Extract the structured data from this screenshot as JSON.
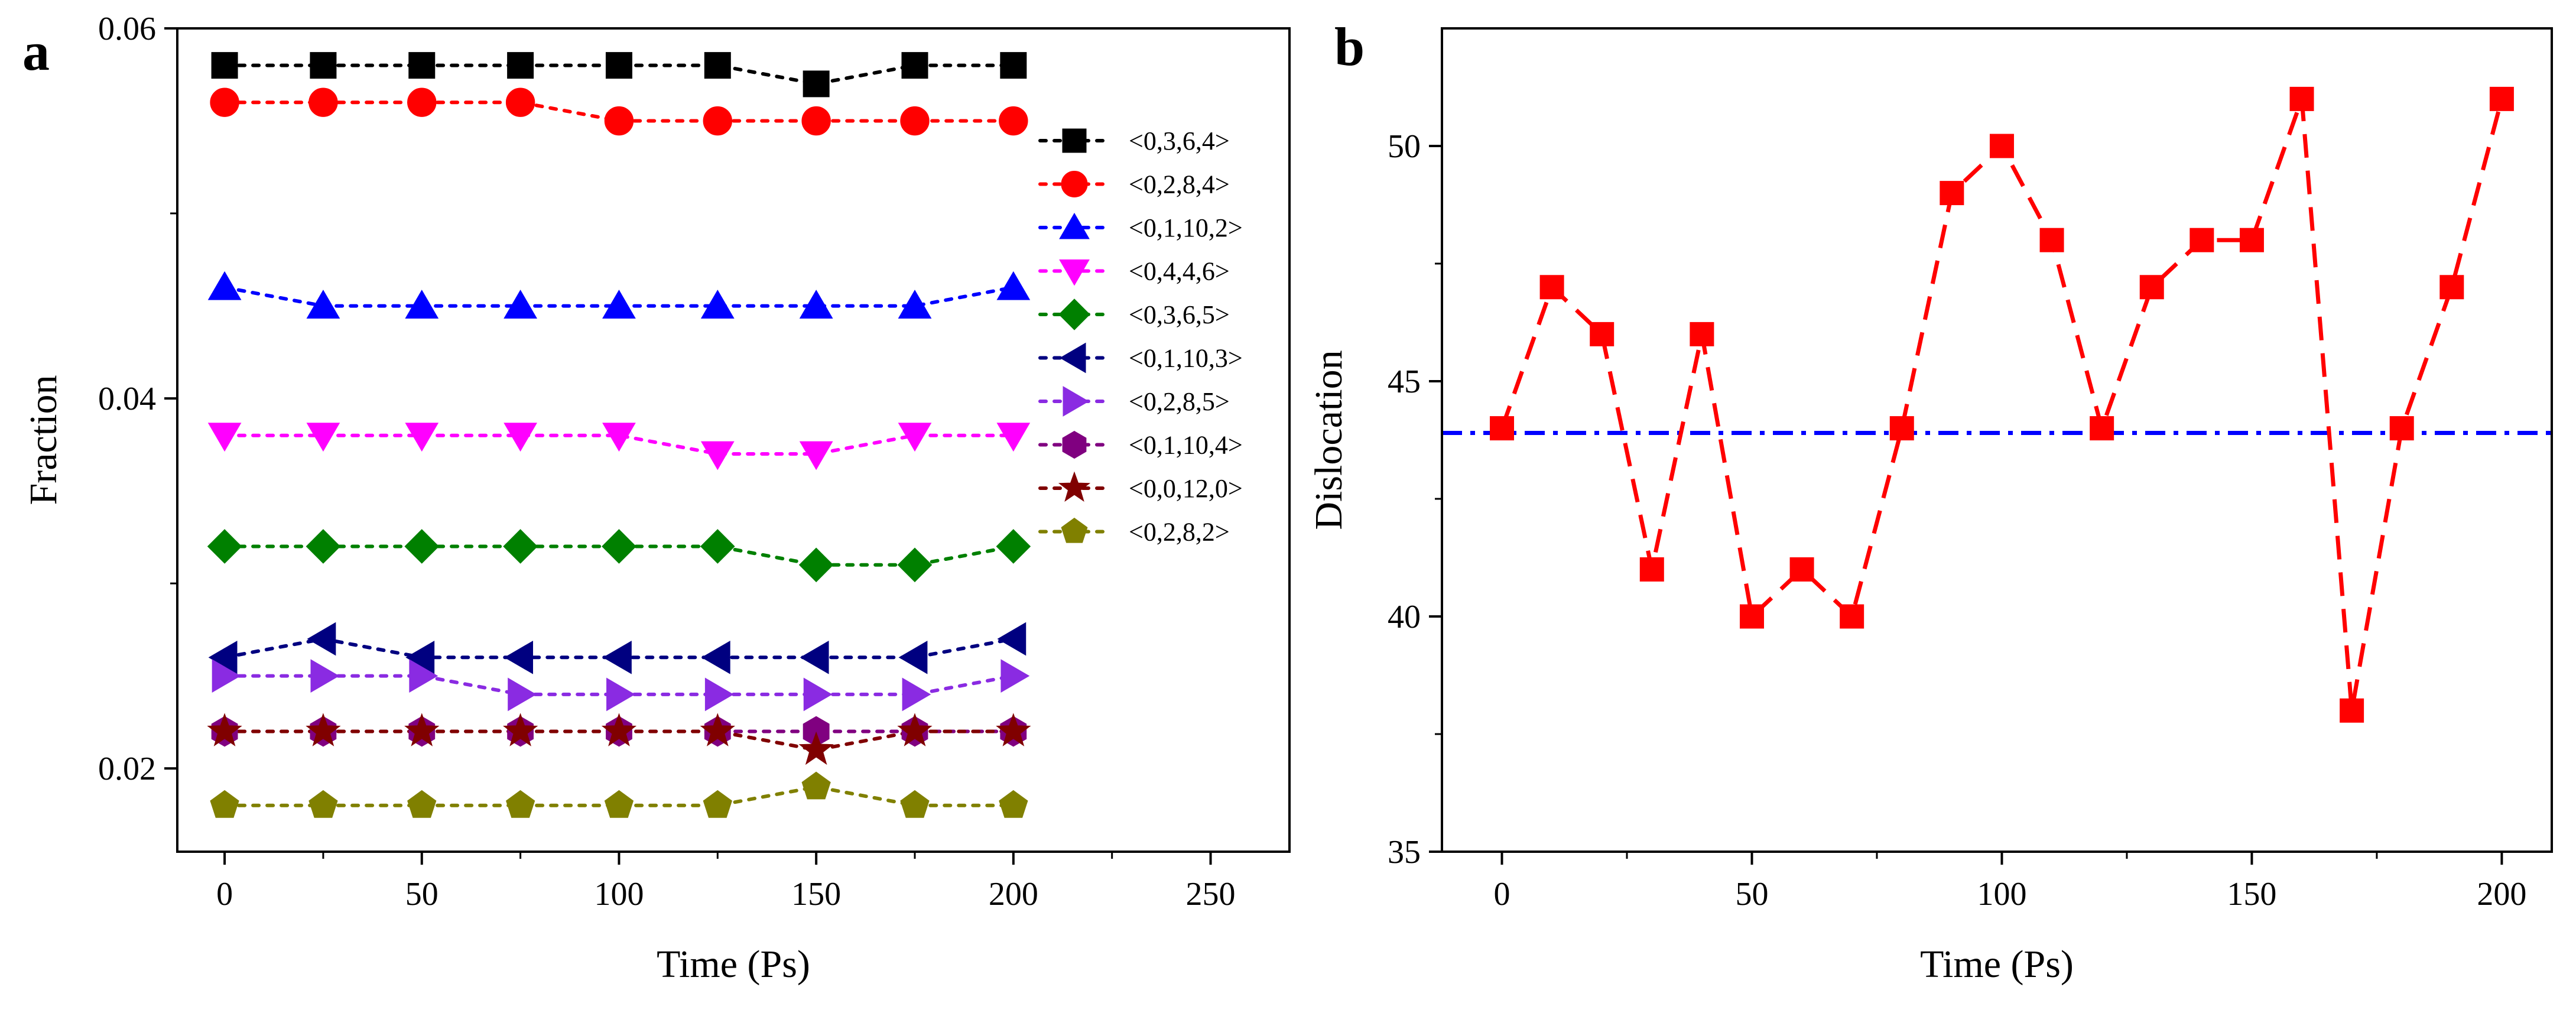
{
  "chart_data": [
    {
      "panel": "a",
      "type": "line",
      "title": "",
      "xlabel": "Time (Ps)",
      "ylabel": "Fraction",
      "xlim": [
        -12,
        270
      ],
      "ylim": [
        0.0155,
        0.06
      ],
      "xticks": [
        0,
        50,
        100,
        150,
        200,
        250
      ],
      "yticks": [
        0.02,
        0.04,
        0.06
      ],
      "xtick_labels": [
        "0",
        "50",
        "100",
        "150",
        "200",
        "250"
      ],
      "ytick_labels": [
        "0.02",
        "0.04",
        "0.06"
      ],
      "legend_position": "right",
      "x": [
        0,
        25,
        50,
        75,
        100,
        125,
        150,
        175,
        200
      ],
      "series": [
        {
          "name": "<0,3,6,4>",
          "color": "#000000",
          "marker": "square",
          "values": [
            0.058,
            0.058,
            0.058,
            0.058,
            0.058,
            0.058,
            0.057,
            0.058,
            0.058
          ]
        },
        {
          "name": "<0,2,8,4>",
          "color": "#ff0000",
          "marker": "circle",
          "values": [
            0.056,
            0.056,
            0.056,
            0.056,
            0.055,
            0.055,
            0.055,
            0.055,
            0.055
          ]
        },
        {
          "name": "<0,1,10,2>",
          "color": "#0000ff",
          "marker": "triangle-up",
          "values": [
            0.046,
            0.045,
            0.045,
            0.045,
            0.045,
            0.045,
            0.045,
            0.045,
            0.046
          ]
        },
        {
          "name": "<0,4,4,6>",
          "color": "#ff00ff",
          "marker": "triangle-down",
          "values": [
            0.038,
            0.038,
            0.038,
            0.038,
            0.038,
            0.037,
            0.037,
            0.038,
            0.038
          ]
        },
        {
          "name": "<0,3,6,5>",
          "color": "#008000",
          "marker": "diamond",
          "values": [
            0.032,
            0.032,
            0.032,
            0.032,
            0.032,
            0.032,
            0.031,
            0.031,
            0.032
          ]
        },
        {
          "name": "<0,1,10,3>",
          "color": "#000080",
          "marker": "triangle-left",
          "values": [
            0.026,
            0.027,
            0.026,
            0.026,
            0.026,
            0.026,
            0.026,
            0.026,
            0.027
          ]
        },
        {
          "name": "<0,2,8,5>",
          "color": "#8a2be2",
          "marker": "triangle-right",
          "values": [
            0.025,
            0.025,
            0.025,
            0.024,
            0.024,
            0.024,
            0.024,
            0.024,
            0.025
          ]
        },
        {
          "name": "<0,1,10,4>",
          "color": "#800080",
          "marker": "hexagon",
          "values": [
            0.022,
            0.022,
            0.022,
            0.022,
            0.022,
            0.022,
            0.022,
            0.022,
            0.022
          ]
        },
        {
          "name": "<0,0,12,0>",
          "color": "#800000",
          "marker": "star",
          "values": [
            0.022,
            0.022,
            0.022,
            0.022,
            0.022,
            0.022,
            0.021,
            0.022,
            0.022
          ]
        },
        {
          "name": "<0,2,8,2>",
          "color": "#808000",
          "marker": "pentagon",
          "values": [
            0.018,
            0.018,
            0.018,
            0.018,
            0.018,
            0.018,
            0.019,
            0.018,
            0.018
          ]
        }
      ]
    },
    {
      "panel": "b",
      "type": "line",
      "title": "",
      "xlabel": "Time (Ps)",
      "ylabel": "Dislocation",
      "xlim": [
        -12,
        210
      ],
      "ylim": [
        35,
        52.5
      ],
      "xticks": [
        0,
        50,
        100,
        150,
        200
      ],
      "yticks": [
        35,
        40,
        45,
        50
      ],
      "xtick_labels": [
        "0",
        "50",
        "100",
        "150",
        "200"
      ],
      "ytick_labels": [
        "35",
        "40",
        "45",
        "50"
      ],
      "x": [
        0,
        10,
        20,
        30,
        40,
        50,
        60,
        70,
        80,
        90,
        100,
        110,
        120,
        130,
        140,
        150,
        160,
        170,
        180,
        190,
        200
      ],
      "series": [
        {
          "name": "Dislocation",
          "color": "#ff0000",
          "marker": "square",
          "line_style": "dashed",
          "values": [
            44,
            47,
            46,
            41,
            46,
            40,
            41,
            40,
            44,
            49,
            50,
            48,
            44,
            47,
            48,
            48,
            51,
            38,
            44,
            47,
            51
          ]
        }
      ],
      "reference_line": {
        "y": 43.9,
        "color": "#0000ff",
        "line_style": "dash-dot"
      }
    }
  ]
}
